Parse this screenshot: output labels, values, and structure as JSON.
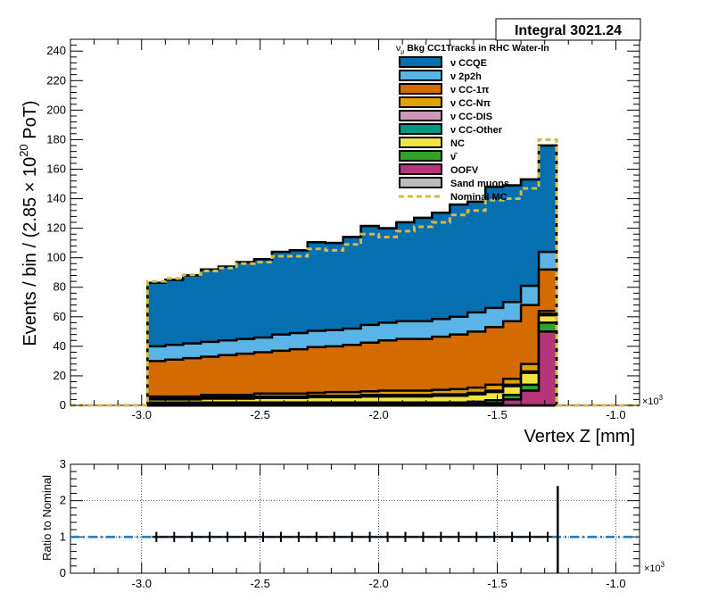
{
  "stats_box": {
    "label": "Integral 3021.24"
  },
  "legend": {
    "title": "ν_μ Bkg CC1Tracks in RHC Water-In",
    "entries": [
      {
        "label": "ν CCQE",
        "color": "#0570b0",
        "style": "fill"
      },
      {
        "label": "ν 2p2h",
        "color": "#5ab4e6",
        "style": "fill"
      },
      {
        "label": "ν CC-1π",
        "color": "#d36b00",
        "style": "fill"
      },
      {
        "label": "ν CC-Nπ",
        "color": "#e69f00",
        "style": "fill"
      },
      {
        "label": "ν CC-DIS",
        "color": "#cc99bb",
        "style": "fill"
      },
      {
        "label": "ν CC-Other",
        "color": "#009980",
        "style": "fill"
      },
      {
        "label": "NC",
        "color": "#f0e442",
        "style": "fill"
      },
      {
        "label": "ν̄",
        "color": "#33a02c",
        "style": "fill"
      },
      {
        "label": "OOFV",
        "color": "#b5357a",
        "style": "fill"
      },
      {
        "label": "Sand muons",
        "color": "#bbbbbb",
        "style": "fill"
      },
      {
        "label": "Nominal MC",
        "color": "#d4b94a",
        "style": "dashed"
      }
    ]
  },
  "top_axes": {
    "xlabel": "Vertex Z [mm]",
    "ylabel": "Events / bin / (2.85  × 10^20 PoT)",
    "x_exponent": "×10^3",
    "ylim": [
      0,
      248
    ],
    "xlim": [
      -3.3,
      -0.9
    ],
    "yticks": [
      "0",
      "20",
      "40",
      "60",
      "80",
      "100",
      "120",
      "140",
      "160",
      "180",
      "200",
      "220",
      "240"
    ],
    "xticks": [
      "-3.0",
      "-2.5",
      "-2.0",
      "-1.5",
      "-1.0"
    ]
  },
  "bottom_axes": {
    "ylabel": "Ratio to Nominal",
    "x_exponent": "×10^3",
    "ylim": [
      0,
      3
    ],
    "yticks": [
      "0",
      "1",
      "2",
      "3"
    ],
    "xticks": [
      "-3.0",
      "-2.5",
      "-2.0",
      "-1.5",
      "-1.0"
    ],
    "grid": true
  },
  "chart_data": [
    {
      "type": "area",
      "stacked": true,
      "x_unit": "×10^3 mm",
      "bin_edges": [
        -2.975,
        -2.9,
        -2.825,
        -2.75,
        -2.675,
        -2.6,
        -2.525,
        -2.45,
        -2.375,
        -2.3,
        -2.225,
        -2.15,
        -2.075,
        -2.0,
        -1.925,
        -1.85,
        -1.775,
        -1.7,
        -1.625,
        -1.55,
        -1.475,
        -1.4,
        -1.325,
        -1.25
      ],
      "ylim": [
        0,
        248
      ],
      "series": [
        {
          "name": "OOFV",
          "values": [
            0.5,
            0.5,
            0.5,
            0.5,
            0.5,
            0.5,
            0.5,
            0.5,
            0.5,
            0.5,
            0.5,
            0.5,
            0.5,
            0.5,
            0.5,
            0.5,
            0.5,
            0.5,
            1,
            1.5,
            4,
            10,
            50
          ]
        },
        {
          "name": "ν̄",
          "values": [
            1.5,
            1.5,
            1.5,
            1.5,
            1.5,
            1.5,
            1.5,
            1.5,
            1.5,
            1.5,
            1.5,
            1.5,
            1.5,
            1.5,
            1.5,
            1.5,
            1.5,
            1.5,
            1.5,
            2,
            3,
            4,
            6
          ]
        },
        {
          "name": "NC",
          "values": [
            2,
            2,
            2,
            2.5,
            2.5,
            2.5,
            3,
            3,
            3,
            3.5,
            3.5,
            3.5,
            4,
            4,
            4,
            4,
            4.5,
            4.5,
            5,
            5.5,
            6,
            8,
            5
          ]
        },
        {
          "name": "ν CC-Other",
          "values": [
            0.5,
            0.5,
            0.5,
            0.5,
            0.5,
            0.5,
            0.5,
            0.5,
            0.5,
            0.5,
            0.5,
            0.5,
            0.5,
            0.5,
            0.5,
            0.5,
            0.5,
            0.5,
            0.5,
            0.5,
            0.5,
            0.5,
            0.5
          ]
        },
        {
          "name": "ν CC-DIS",
          "values": [
            0.5,
            0.5,
            0.5,
            0.5,
            0.5,
            0.5,
            0.5,
            0.5,
            0.5,
            0.5,
            0.5,
            0.5,
            0.5,
            0.5,
            0.5,
            0.5,
            0.5,
            0.5,
            0.5,
            0.5,
            0.5,
            0.5,
            0.5
          ]
        },
        {
          "name": "ν CC-Nπ",
          "values": [
            1,
            1,
            1,
            1.5,
            1.5,
            1.5,
            2,
            2,
            2,
            2,
            2.5,
            2.5,
            2.5,
            3,
            3,
            3,
            3,
            3.5,
            3.5,
            4,
            4,
            5,
            2
          ]
        },
        {
          "name": "ν CC-1π",
          "values": [
            24,
            25,
            26,
            26,
            27,
            28,
            28,
            29,
            30,
            31,
            31,
            32,
            33,
            34,
            35,
            35,
            36,
            37,
            38,
            39,
            39,
            40,
            28
          ]
        },
        {
          "name": "ν 2p2h",
          "values": [
            10,
            10,
            10,
            10,
            10,
            10,
            10,
            11,
            11,
            11,
            11,
            11,
            12,
            12,
            12,
            12,
            12,
            12,
            13,
            13,
            13,
            13,
            12
          ]
        },
        {
          "name": "ν CCQE",
          "values": [
            43,
            44,
            46,
            49,
            50,
            52,
            53,
            56,
            56,
            60,
            59,
            62,
            67,
            64,
            67,
            70,
            72,
            76,
            75,
            82,
            79,
            72,
            72
          ]
        },
        {
          "name": "Sand muons",
          "values": [
            0,
            0,
            0,
            0,
            0,
            0,
            0,
            0,
            0,
            0,
            0,
            0,
            0,
            0,
            0,
            0,
            0,
            0,
            0,
            0,
            0,
            0,
            0
          ]
        }
      ],
      "nominal_mc": [
        84,
        86,
        88.5,
        91,
        93,
        96,
        97,
        101,
        101,
        106,
        105,
        109,
        116,
        114,
        118,
        121,
        124,
        129,
        132,
        139,
        140,
        147,
        180
      ]
    },
    {
      "type": "scatter",
      "x": [
        -2.9375,
        -2.8625,
        -2.7875,
        -2.7125,
        -2.6375,
        -2.5625,
        -2.4875,
        -2.4125,
        -2.3375,
        -2.2625,
        -2.1875,
        -2.1125,
        -2.0375,
        -1.9625,
        -1.8875,
        -1.8125,
        -1.7375,
        -1.6625,
        -1.5875,
        -1.5125,
        -1.4375,
        -1.3625,
        -1.2875
      ],
      "y": [
        1,
        1,
        1,
        1,
        1,
        1,
        1,
        1,
        1,
        1,
        1,
        1,
        1,
        1,
        1,
        1,
        1,
        1,
        1,
        1,
        1,
        1,
        1
      ],
      "y_err": [
        0.14,
        0.14,
        0.14,
        0.14,
        0.14,
        0.14,
        0.14,
        0.14,
        0.14,
        0.14,
        0.14,
        0.14,
        0.14,
        0.14,
        0.14,
        0.14,
        0.14,
        0.14,
        0.14,
        0.14,
        0.14,
        0.14,
        0.14
      ],
      "extra_bar": {
        "x": -1.245,
        "y_low": 0,
        "y_high": 2.4
      },
      "reference_line": 1,
      "ylim": [
        0,
        3
      ]
    }
  ]
}
